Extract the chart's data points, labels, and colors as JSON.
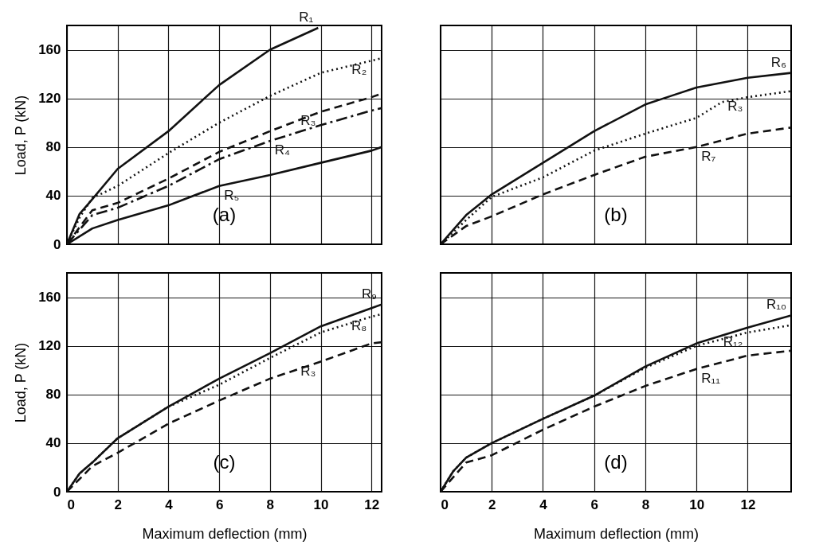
{
  "chart_data": [
    {
      "type": "line",
      "ylabel": "Load, P (kN)",
      "xlim": [
        0,
        12.4
      ],
      "ylim": [
        0,
        180
      ],
      "xticks": [
        0,
        2,
        4,
        6,
        8,
        10,
        12
      ],
      "yticks": [
        0,
        40,
        80,
        120,
        160
      ],
      "grid": true,
      "tick_labels": "y",
      "annotations": [
        "(a)"
      ],
      "x": [
        0,
        0.5,
        1,
        2,
        4,
        6,
        8,
        9.9
      ],
      "series": [
        {
          "name": "R₁",
          "color": "#111111",
          "line_style": "solid",
          "values": [
            0,
            25,
            37,
            62,
            93,
            131,
            160,
            178
          ]
        },
        {
          "name": "R₂",
          "color": "#111111",
          "line_style": "dotted",
          "x": [
            0,
            0.5,
            1,
            2,
            4,
            6,
            8,
            10,
            12,
            12.4
          ],
          "values": [
            0,
            22,
            38,
            48,
            75,
            100,
            122,
            141,
            151,
            153
          ]
        },
        {
          "name": "R₃",
          "color": "#111111",
          "line_style": "dashed",
          "x": [
            0,
            1,
            2,
            4,
            6,
            8,
            10,
            12,
            12.4
          ],
          "values": [
            0,
            28,
            34,
            54,
            76,
            93,
            109,
            121,
            124
          ]
        },
        {
          "name": "R₄",
          "color": "#111111",
          "line_style": "dashdot",
          "x": [
            0,
            1,
            2,
            4,
            6,
            8,
            10,
            12,
            12.4
          ],
          "values": [
            0,
            24,
            30,
            48,
            70,
            85,
            98,
            110,
            112
          ]
        },
        {
          "name": "R₅",
          "color": "#111111",
          "line_style": "solid",
          "x": [
            0,
            1,
            2,
            4,
            6,
            8,
            10,
            12,
            12.4
          ],
          "values": [
            0,
            13,
            20,
            32,
            48,
            57,
            67,
            77,
            80
          ]
        }
      ]
    },
    {
      "type": "line",
      "xlim": [
        0,
        13.7
      ],
      "ylim": [
        0,
        180
      ],
      "xticks": [
        0,
        2,
        4,
        6,
        8,
        10,
        12
      ],
      "yticks": [
        0,
        40,
        80,
        120,
        160
      ],
      "grid": true,
      "tick_labels": false,
      "annotations": [
        "(b)"
      ],
      "x": [
        0,
        1,
        2,
        4,
        6,
        8,
        9,
        10,
        12,
        13.7
      ],
      "series": [
        {
          "name": "R₆",
          "color": "#111111",
          "line_style": "solid",
          "values": [
            0,
            24,
            41,
            67,
            93,
            115,
            122,
            129,
            137,
            141
          ]
        },
        {
          "name": "R₃",
          "color": "#111111",
          "line_style": "dotted",
          "x": [
            0,
            1,
            2,
            4,
            6,
            8,
            10,
            11,
            12,
            13.7
          ],
          "values": [
            0,
            20,
            39,
            55,
            77,
            91,
            104,
            117,
            121,
            126
          ]
        },
        {
          "name": "R₇",
          "color": "#111111",
          "line_style": "dashed",
          "x": [
            0,
            1,
            2,
            4,
            6,
            8,
            10,
            12,
            13.7
          ],
          "values": [
            0,
            15,
            23,
            41,
            57,
            72,
            80,
            91,
            96
          ]
        }
      ]
    },
    {
      "type": "line",
      "xlabel": "Maximum deflection (mm)",
      "ylabel": "Load, P (kN)",
      "xlim": [
        0,
        12.4
      ],
      "ylim": [
        0,
        180
      ],
      "xticks": [
        0,
        2,
        4,
        6,
        8,
        10,
        12
      ],
      "yticks": [
        0,
        40,
        80,
        120,
        160
      ],
      "grid": true,
      "annotations": [
        "(c)"
      ],
      "x": [
        0,
        0.5,
        1,
        2,
        4,
        6,
        8,
        10,
        12,
        12.4
      ],
      "series": [
        {
          "name": "R₉",
          "color": "#111111",
          "line_style": "solid",
          "values": [
            0,
            15,
            24,
            44,
            70,
            93,
            114,
            136,
            151,
            154
          ]
        },
        {
          "name": "R₈",
          "color": "#111111",
          "line_style": "dotted",
          "values": [
            0,
            15,
            24,
            44,
            70,
            88,
            110,
            131,
            144,
            146
          ]
        },
        {
          "name": "R₃",
          "color": "#111111",
          "line_style": "dashed",
          "x": [
            0,
            1,
            2,
            4,
            6,
            8,
            10,
            12,
            12.4
          ],
          "values": [
            0,
            21,
            32,
            56,
            75,
            93,
            107,
            122,
            123
          ]
        }
      ]
    },
    {
      "type": "line",
      "xlabel": "Maximum deflection (mm)",
      "xlim": [
        0,
        13.7
      ],
      "ylim": [
        0,
        180
      ],
      "xticks": [
        0,
        2,
        4,
        6,
        8,
        10,
        12
      ],
      "yticks": [
        0,
        40,
        80,
        120,
        160
      ],
      "grid": true,
      "tick_labels": "x",
      "annotations": [
        "(d)"
      ],
      "x": [
        0,
        0.5,
        1,
        2,
        4,
        6,
        8,
        10,
        12,
        13.7
      ],
      "series": [
        {
          "name": "R₁₀",
          "color": "#111111",
          "line_style": "solid",
          "values": [
            0,
            17,
            28,
            40,
            60,
            79,
            103,
            122,
            135,
            145
          ]
        },
        {
          "name": "R₁₂",
          "color": "#111111",
          "line_style": "dotted",
          "values": [
            0,
            17,
            28,
            40,
            60,
            79,
            102,
            120,
            131,
            137
          ]
        },
        {
          "name": "R₁₁",
          "color": "#111111",
          "line_style": "dashed",
          "x": [
            0,
            1,
            2,
            4,
            6,
            8,
            10,
            12,
            13.7
          ],
          "values": [
            0,
            24,
            30,
            51,
            70,
            87,
            101,
            112,
            116
          ]
        }
      ]
    }
  ]
}
